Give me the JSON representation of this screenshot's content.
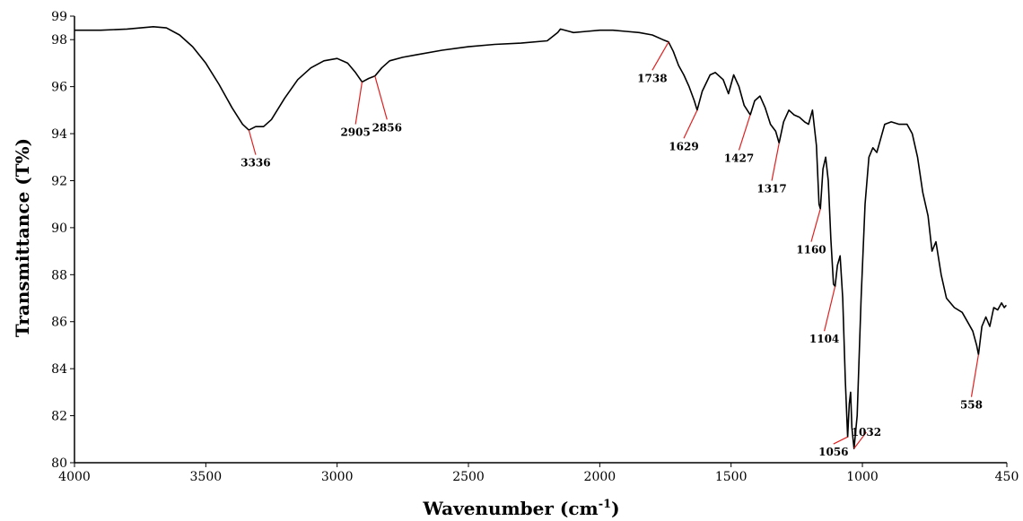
{
  "chart_data": {
    "type": "line",
    "title": "",
    "xlabel": "Wavenumber (cm",
    "xlabel_sup": "-1",
    "xlabel_close": ")",
    "ylabel": "Transmittance (T%)",
    "xlim": [
      4000,
      450
    ],
    "ylim": [
      80,
      99
    ],
    "x_ticks": [
      4000,
      3500,
      3000,
      2500,
      2000,
      1500,
      1000,
      450
    ],
    "y_ticks": [
      80,
      82,
      84,
      86,
      88,
      90,
      92,
      94,
      96,
      98,
      99
    ],
    "grid": false,
    "line_color": "#000000",
    "annotation_color": "#e02020",
    "series": [
      {
        "points": [
          [
            4000,
            98.4
          ],
          [
            3900,
            98.4
          ],
          [
            3800,
            98.45
          ],
          [
            3700,
            98.55
          ],
          [
            3650,
            98.5
          ],
          [
            3600,
            98.2
          ],
          [
            3550,
            97.7
          ],
          [
            3500,
            97.0
          ],
          [
            3450,
            96.1
          ],
          [
            3400,
            95.1
          ],
          [
            3360,
            94.4
          ],
          [
            3336,
            94.15
          ],
          [
            3310,
            94.3
          ],
          [
            3280,
            94.3
          ],
          [
            3250,
            94.6
          ],
          [
            3200,
            95.5
          ],
          [
            3150,
            96.3
          ],
          [
            3100,
            96.8
          ],
          [
            3050,
            97.1
          ],
          [
            3000,
            97.2
          ],
          [
            2960,
            97.0
          ],
          [
            2930,
            96.6
          ],
          [
            2905,
            96.2
          ],
          [
            2880,
            96.35
          ],
          [
            2856,
            96.45
          ],
          [
            2830,
            96.8
          ],
          [
            2800,
            97.1
          ],
          [
            2750,
            97.25
          ],
          [
            2700,
            97.35
          ],
          [
            2600,
            97.55
          ],
          [
            2500,
            97.7
          ],
          [
            2400,
            97.8
          ],
          [
            2300,
            97.85
          ],
          [
            2200,
            97.95
          ],
          [
            2160,
            98.3
          ],
          [
            2150,
            98.45
          ],
          [
            2100,
            98.3
          ],
          [
            2050,
            98.35
          ],
          [
            2000,
            98.4
          ],
          [
            1950,
            98.4
          ],
          [
            1900,
            98.35
          ],
          [
            1850,
            98.3
          ],
          [
            1800,
            98.2
          ],
          [
            1760,
            98.0
          ],
          [
            1738,
            97.9
          ],
          [
            1720,
            97.5
          ],
          [
            1700,
            96.9
          ],
          [
            1680,
            96.5
          ],
          [
            1660,
            96.0
          ],
          [
            1640,
            95.4
          ],
          [
            1629,
            95.0
          ],
          [
            1610,
            95.8
          ],
          [
            1580,
            96.5
          ],
          [
            1560,
            96.6
          ],
          [
            1530,
            96.3
          ],
          [
            1510,
            95.7
          ],
          [
            1490,
            96.5
          ],
          [
            1470,
            96.0
          ],
          [
            1450,
            95.2
          ],
          [
            1427,
            94.8
          ],
          [
            1410,
            95.4
          ],
          [
            1390,
            95.6
          ],
          [
            1370,
            95.1
          ],
          [
            1350,
            94.4
          ],
          [
            1330,
            94.1
          ],
          [
            1317,
            93.6
          ],
          [
            1300,
            94.5
          ],
          [
            1280,
            95.0
          ],
          [
            1260,
            94.8
          ],
          [
            1240,
            94.7
          ],
          [
            1220,
            94.5
          ],
          [
            1205,
            94.4
          ],
          [
            1190,
            95.0
          ],
          [
            1175,
            93.5
          ],
          [
            1165,
            91.0
          ],
          [
            1160,
            90.8
          ],
          [
            1150,
            92.5
          ],
          [
            1140,
            93.0
          ],
          [
            1130,
            92.0
          ],
          [
            1120,
            89.5
          ],
          [
            1110,
            87.6
          ],
          [
            1104,
            87.5
          ],
          [
            1095,
            88.4
          ],
          [
            1085,
            88.8
          ],
          [
            1075,
            87.0
          ],
          [
            1065,
            83.5
          ],
          [
            1056,
            81.1
          ],
          [
            1050,
            82.5
          ],
          [
            1045,
            83.0
          ],
          [
            1040,
            81.5
          ],
          [
            1032,
            80.6
          ],
          [
            1020,
            82.0
          ],
          [
            1005,
            87.0
          ],
          [
            990,
            91.0
          ],
          [
            975,
            93.0
          ],
          [
            960,
            93.4
          ],
          [
            945,
            93.2
          ],
          [
            930,
            93.8
          ],
          [
            915,
            94.4
          ],
          [
            890,
            94.5
          ],
          [
            860,
            94.4
          ],
          [
            830,
            94.4
          ],
          [
            810,
            94.0
          ],
          [
            790,
            93.0
          ],
          [
            770,
            91.5
          ],
          [
            750,
            90.5
          ],
          [
            735,
            89.0
          ],
          [
            720,
            89.4
          ],
          [
            700,
            88.0
          ],
          [
            680,
            87.0
          ],
          [
            650,
            86.6
          ],
          [
            620,
            86.4
          ],
          [
            600,
            86.0
          ],
          [
            580,
            85.6
          ],
          [
            565,
            85.0
          ],
          [
            558,
            84.6
          ],
          [
            545,
            85.8
          ],
          [
            530,
            86.2
          ],
          [
            515,
            85.8
          ],
          [
            500,
            86.6
          ],
          [
            485,
            86.5
          ],
          [
            470,
            86.8
          ],
          [
            460,
            86.6
          ],
          [
            452,
            86.7
          ]
        ]
      }
    ],
    "annotations": [
      {
        "label": "3336",
        "x": 3336,
        "y": 94.15,
        "tx": 3310,
        "ty": 93.1
      },
      {
        "label": "2905",
        "x": 2905,
        "y": 96.2,
        "tx": 2930,
        "ty": 94.4
      },
      {
        "label": "2856",
        "x": 2856,
        "y": 96.45,
        "tx": 2810,
        "ty": 94.6
      },
      {
        "label": "1738",
        "x": 1738,
        "y": 97.9,
        "tx": 1800,
        "ty": 96.7
      },
      {
        "label": "1629",
        "x": 1629,
        "y": 95.0,
        "tx": 1680,
        "ty": 93.8
      },
      {
        "label": "1427",
        "x": 1427,
        "y": 94.8,
        "tx": 1470,
        "ty": 93.3
      },
      {
        "label": "1317",
        "x": 1317,
        "y": 93.6,
        "tx": 1345,
        "ty": 92.0
      },
      {
        "label": "1160",
        "x": 1160,
        "y": 90.8,
        "tx": 1195,
        "ty": 89.4
      },
      {
        "label": "1104",
        "x": 1104,
        "y": 87.5,
        "tx": 1145,
        "ty": 85.6
      },
      {
        "label": "1056",
        "x": 1056,
        "y": 81.1,
        "tx": 1110,
        "ty": 80.8
      },
      {
        "label": "1032",
        "x": 1032,
        "y": 80.6,
        "tx": 985,
        "ty": 81.3
      },
      {
        "label": "558",
        "x": 558,
        "y": 84.6,
        "tx": 585,
        "ty": 82.8
      }
    ]
  }
}
